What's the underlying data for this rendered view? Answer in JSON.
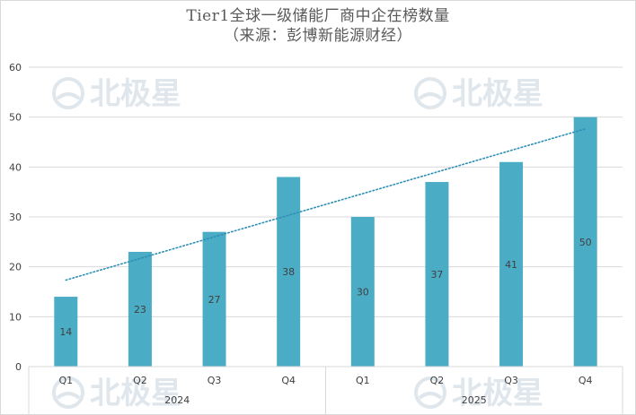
{
  "chart_data": {
    "type": "bar",
    "title": "Tier1全球一级储能厂商中企在榜数量",
    "subtitle": "（来源：彭博新能源财经）",
    "categories": [
      "Q1",
      "Q2",
      "Q3",
      "Q4",
      "Q1",
      "Q2",
      "Q3",
      "Q4"
    ],
    "groups": [
      {
        "label": "2024",
        "categories": [
          "Q1",
          "Q2",
          "Q3",
          "Q4"
        ]
      },
      {
        "label": "2025",
        "categories": [
          "Q1",
          "Q2",
          "Q3",
          "Q4"
        ]
      }
    ],
    "values": [
      14,
      23,
      27,
      38,
      30,
      37,
      41,
      50
    ],
    "ylim": [
      0,
      60
    ],
    "yticks": [
      0,
      10,
      20,
      30,
      40,
      50,
      60
    ],
    "grid": true,
    "data_labels": true,
    "trendline": {
      "type": "linear",
      "style": "dotted"
    },
    "bar_color": "#4bacc6",
    "trend_color": "#2e8fb5",
    "grid_color": "#d9d9d9"
  },
  "watermark": {
    "text": "北极星",
    "icon": "snowflake-logo-icon",
    "color": "#dfe6ec"
  }
}
